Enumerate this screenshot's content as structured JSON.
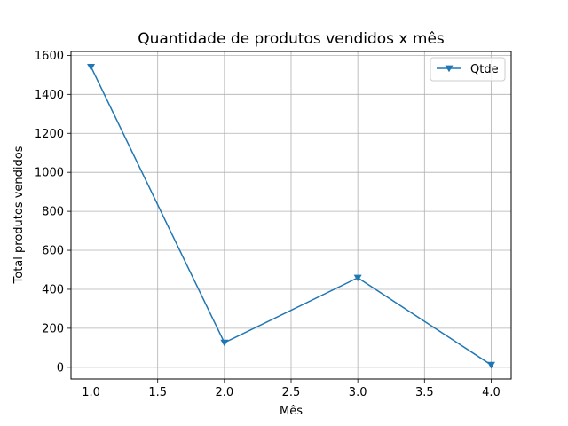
{
  "chart_data": {
    "type": "line",
    "title": "Quantidade de produtos vendidos x mês",
    "xlabel": "Mês",
    "ylabel": "Total produtos vendidos",
    "xlim": [
      0.85,
      4.15
    ],
    "ylim": [
      -60,
      1620
    ],
    "xticks": [
      1.0,
      1.5,
      2.0,
      2.5,
      3.0,
      3.5,
      4.0
    ],
    "xtick_labels": [
      "1.0",
      "1.5",
      "2.0",
      "2.5",
      "3.0",
      "3.5",
      "4.0"
    ],
    "yticks": [
      0,
      200,
      400,
      600,
      800,
      1000,
      1200,
      1400,
      1600
    ],
    "ytick_labels": [
      "0",
      "200",
      "400",
      "600",
      "800",
      "1000",
      "1200",
      "1400",
      "1600"
    ],
    "grid": true,
    "legend_position": "top-right",
    "series": [
      {
        "name": "Qtde",
        "x": [
          1.0,
          2.0,
          3.0,
          4.0
        ],
        "values": [
          1541,
          126,
          459,
          12
        ],
        "color": "#1f77b4",
        "marker": "triangle-down"
      }
    ]
  }
}
